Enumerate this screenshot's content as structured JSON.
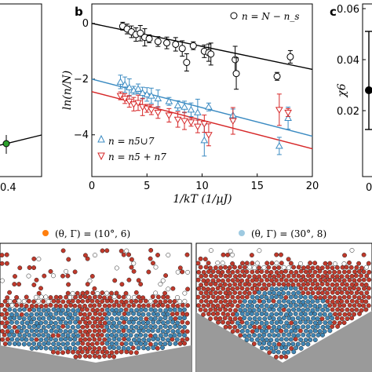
{
  "figure": {
    "panel_a": {
      "tick_x": "0.4",
      "point_color": "#2ca02c"
    },
    "panel_b": {
      "letter": "b",
      "ylabel": "ln(n/N)",
      "xlabel": "1/kT (1/µJ)",
      "legend_top": "n = N − n_s",
      "legend_blue": "n = n5∪7",
      "legend_red": "n = n5 + n7"
    },
    "panel_c": {
      "letter": "c",
      "ylabel": "χ6",
      "yticks": [
        "0.06",
        "0.04",
        "0.02"
      ],
      "tick_x_partial": "0"
    },
    "bottom": {
      "legend_left": "(θ, Γ) = (10°, 6)",
      "legend_right": "(θ, Γ) = (30°, 8)",
      "left_marker_color": "#ff7f0e",
      "right_marker_color": "#9ecae1"
    }
  },
  "chart_data": {
    "type": "scatter",
    "xlabel": "1/kT (1/µJ)",
    "ylabel": "ln(n/N)",
    "xlim": [
      0,
      20
    ],
    "ylim": [
      -5.5,
      0.7
    ],
    "x_ticks": [
      0,
      5,
      10,
      15,
      20
    ],
    "y_ticks": [
      0,
      -2,
      -4
    ],
    "series": [
      {
        "name": "n = N − n_s",
        "marker": "circle-open",
        "color": "#000000",
        "x": [
          2.8,
          3.2,
          3.6,
          4.0,
          4.4,
          4.8,
          5.2,
          6.0,
          6.8,
          7.6,
          8.2,
          8.6,
          9.2,
          10.2,
          10.6,
          10.8,
          13.0,
          13.1,
          16.8,
          18.0
        ],
        "y": [
          -0.1,
          -0.2,
          -0.3,
          -0.4,
          -0.35,
          -0.5,
          -0.55,
          -0.65,
          -0.7,
          -0.75,
          -0.9,
          -1.4,
          -0.8,
          -1.0,
          -1.05,
          -1.1,
          -1.3,
          -1.8,
          -1.9,
          -1.2
        ],
        "fit": {
          "x0": 0,
          "y0": 0,
          "x1": 20,
          "y1": -1.65
        }
      },
      {
        "name": "n = n5∪7",
        "marker": "triangle-up-open",
        "color": "#3b8bc2",
        "x": [
          2.6,
          3.0,
          3.4,
          3.8,
          4.2,
          4.6,
          5.0,
          5.4,
          6.0,
          7.0,
          7.8,
          8.4,
          9.0,
          9.6,
          10.2,
          10.6,
          12.8,
          17.0,
          17.8
        ],
        "y": [
          -2.1,
          -2.2,
          -2.3,
          -2.4,
          -2.35,
          -2.5,
          -2.55,
          -2.6,
          -2.7,
          -2.8,
          -2.95,
          -3.0,
          -3.1,
          -3.2,
          -4.2,
          -3.0,
          -3.3,
          -4.4,
          -3.4
        ],
        "fit": {
          "x0": 0,
          "y0": -2.0,
          "x1": 20,
          "y1": -4.05
        }
      },
      {
        "name": "n = n5 + n7",
        "marker": "triangle-down-open",
        "color": "#d62728",
        "x": [
          2.6,
          3.0,
          3.4,
          3.8,
          4.2,
          4.6,
          5.0,
          5.4,
          6.0,
          7.0,
          7.8,
          8.4,
          9.0,
          9.6,
          10.2,
          10.6,
          12.8,
          17.0,
          17.8
        ],
        "y": [
          -2.6,
          -2.7,
          -2.8,
          -2.9,
          -2.85,
          -3.0,
          -3.05,
          -3.1,
          -3.2,
          -3.3,
          -3.45,
          -3.5,
          -3.55,
          -3.7,
          -3.6,
          -4.0,
          -3.5,
          -3.1,
          -3.2
        ],
        "fit": {
          "x0": 0,
          "y0": -2.45,
          "x1": 20,
          "y1": -4.5
        }
      }
    ]
  }
}
